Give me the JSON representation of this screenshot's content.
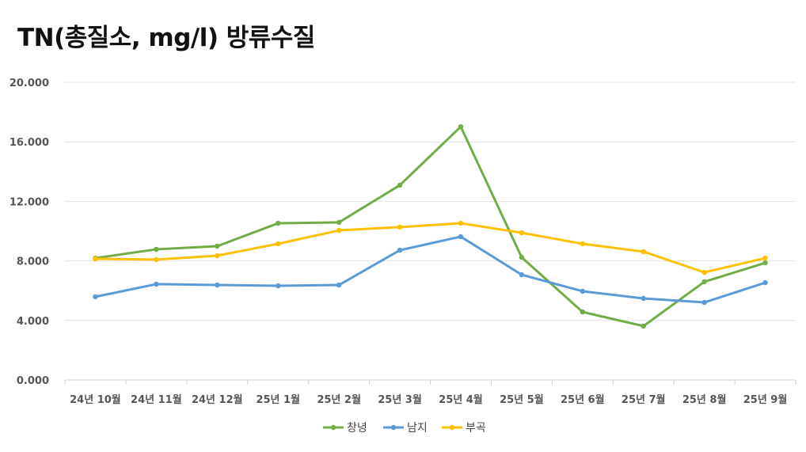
{
  "chart_data": {
    "type": "line",
    "title": "TN(총질소, mg/l) 방류수질",
    "xlabel": "",
    "ylabel": "",
    "ylim": [
      0,
      20
    ],
    "yticks": [
      "0.000",
      "4.000",
      "8.000",
      "12.000",
      "16.000",
      "20.000"
    ],
    "ytick_values": [
      0,
      4,
      8,
      12,
      16,
      20
    ],
    "grid": true,
    "legend_position": "bottom",
    "categories": [
      "24년 10월",
      "24년 11월",
      "24년 12월",
      "25년 1월",
      "25년 2월",
      "25년 3월",
      "25년 4월",
      "25년 5월",
      "25년 6월",
      "25년 7월",
      "25년 8월",
      "25년 9월"
    ],
    "series": [
      {
        "name": "창녕",
        "color": "#70ad47",
        "values": [
          8.19,
          8.78,
          8.99,
          10.53,
          10.59,
          13.09,
          17.02,
          8.24,
          4.57,
          3.62,
          6.6,
          7.87
        ]
      },
      {
        "name": "남지",
        "color": "#5b9bd5",
        "values": [
          5.59,
          6.44,
          6.38,
          6.33,
          6.38,
          8.72,
          9.63,
          7.07,
          5.96,
          5.48,
          5.21,
          6.54
        ]
      },
      {
        "name": "부곡",
        "color": "#ffc000",
        "values": [
          8.14,
          8.09,
          8.35,
          9.15,
          10.05,
          10.27,
          10.53,
          9.89,
          9.15,
          8.62,
          7.23,
          8.19
        ]
      }
    ]
  }
}
